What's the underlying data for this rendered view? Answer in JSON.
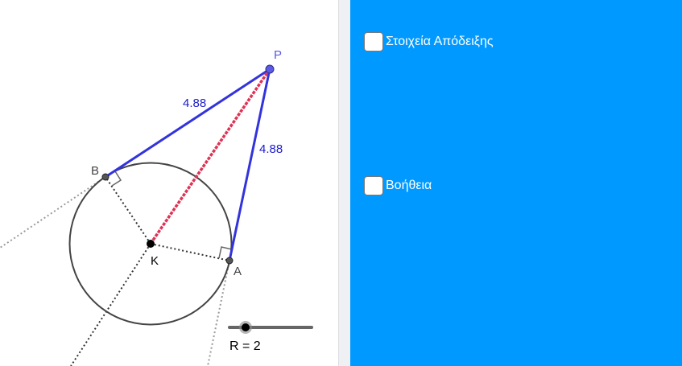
{
  "colors": {
    "panel_bg": "#0099ff",
    "tangent_blue": "#3333dd",
    "segment_red": "#dd3355",
    "measure_blue": "#1a1acc",
    "point_p": "#5a5ae6",
    "circle": "#444444",
    "dark": "#222222"
  },
  "geometry": {
    "point_labels": {
      "P": "P",
      "B": "B",
      "A": "A",
      "K": "K"
    },
    "length_pb": "4.88",
    "length_pa": "4.88"
  },
  "slider": {
    "label": "R = 2",
    "value": 2
  },
  "side_panel": {
    "checkbox_proof": {
      "label": "Στοιχεία Απόδειξης",
      "checked": false
    },
    "checkbox_help": {
      "label": "Βοήθεια",
      "checked": false
    }
  }
}
